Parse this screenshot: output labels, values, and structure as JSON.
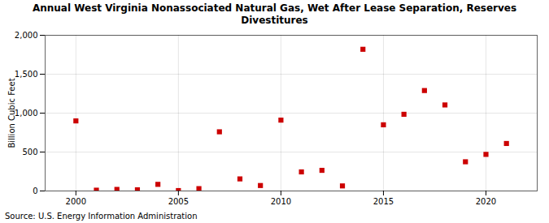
{
  "chart_data": {
    "type": "scatter",
    "title": "Annual West Virginia Nonassociated Natural Gas, Wet After Lease Separation, Reserves\nDivestitures",
    "ylabel": "Billion Cubic Feet",
    "source": "Source: U.S. Energy Information Administration",
    "x": [
      2000,
      2001,
      2002,
      2003,
      2004,
      2005,
      2006,
      2007,
      2008,
      2009,
      2010,
      2011,
      2012,
      2013,
      2014,
      2015,
      2016,
      2017,
      2018,
      2019,
      2020,
      2021
    ],
    "values": [
      900,
      10,
      20,
      15,
      85,
      5,
      30,
      760,
      155,
      70,
      910,
      245,
      265,
      65,
      1820,
      850,
      985,
      1290,
      1105,
      375,
      470,
      610
    ],
    "color": "#cc0000",
    "marker": "square",
    "xlim": [
      1998.5,
      2022.5
    ],
    "xticks": [
      2000,
      2005,
      2010,
      2015,
      2020
    ],
    "ylim": [
      0,
      2000
    ],
    "yticks": [
      0,
      500,
      {
        "value": 1000,
        "label": "1,000"
      },
      {
        "value": 1500,
        "label": "1,500"
      },
      {
        "value": 2000,
        "label": "2,000"
      }
    ],
    "grid": true
  }
}
